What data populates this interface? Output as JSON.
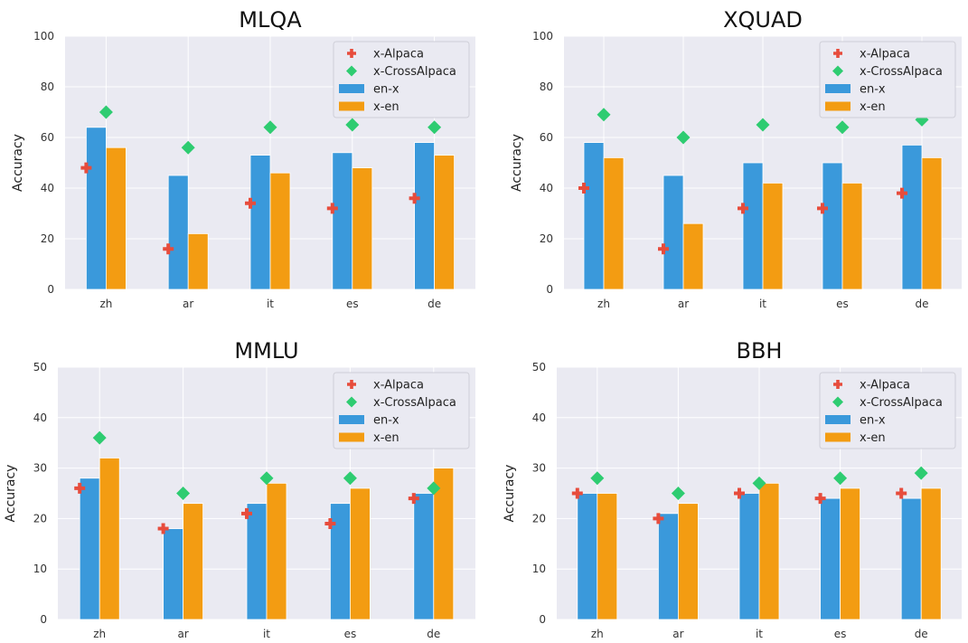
{
  "colors": {
    "en_x": "#3a99db",
    "x_en": "#f39c12",
    "x_alpaca": "#e74c3c",
    "x_crossalpaca": "#2ecc71",
    "plot_bg": "#eaeaf2",
    "grid": "#ffffff"
  },
  "chart_data": [
    {
      "type": "bar",
      "title": "MLQA",
      "ylabel": "Accuracy",
      "xlabel": "",
      "ylim": [
        0,
        100
      ],
      "yticks": [
        "0",
        "20",
        "40",
        "60",
        "80",
        "100"
      ],
      "categories": [
        "zh",
        "ar",
        "it",
        "es",
        "de"
      ],
      "grid": true,
      "legend_position": "top-right",
      "series": [
        {
          "name": "en-x",
          "kind": "bar",
          "values": [
            64,
            45,
            53,
            54,
            58
          ]
        },
        {
          "name": "x-en",
          "kind": "bar",
          "values": [
            56,
            22,
            46,
            48,
            53
          ]
        },
        {
          "name": "x-Alpaca",
          "kind": "scatter",
          "marker": "plus",
          "values": [
            48,
            16,
            34,
            32,
            36
          ]
        },
        {
          "name": "x-CrossAlpaca",
          "kind": "scatter",
          "marker": "diamond",
          "values": [
            70,
            56,
            64,
            65,
            64
          ]
        }
      ]
    },
    {
      "type": "bar",
      "title": "XQUAD",
      "ylabel": "Accuracy",
      "xlabel": "",
      "ylim": [
        0,
        100
      ],
      "yticks": [
        "0",
        "20",
        "40",
        "60",
        "80",
        "100"
      ],
      "categories": [
        "zh",
        "ar",
        "it",
        "es",
        "de"
      ],
      "grid": true,
      "legend_position": "top-right",
      "series": [
        {
          "name": "en-x",
          "kind": "bar",
          "values": [
            58,
            45,
            50,
            50,
            57
          ]
        },
        {
          "name": "x-en",
          "kind": "bar",
          "values": [
            52,
            26,
            42,
            42,
            52
          ]
        },
        {
          "name": "x-Alpaca",
          "kind": "scatter",
          "marker": "plus",
          "values": [
            40,
            16,
            32,
            32,
            38
          ]
        },
        {
          "name": "x-CrossAlpaca",
          "kind": "scatter",
          "marker": "diamond",
          "values": [
            69,
            60,
            65,
            64,
            67
          ]
        }
      ]
    },
    {
      "type": "bar",
      "title": "MMLU",
      "ylabel": "Accuracy",
      "xlabel": "",
      "ylim": [
        0,
        50
      ],
      "yticks": [
        "0",
        "10",
        "20",
        "30",
        "40",
        "50"
      ],
      "categories": [
        "zh",
        "ar",
        "it",
        "es",
        "de"
      ],
      "grid": true,
      "legend_position": "top-right",
      "series": [
        {
          "name": "en-x",
          "kind": "bar",
          "values": [
            28,
            18,
            23,
            23,
            25
          ]
        },
        {
          "name": "x-en",
          "kind": "bar",
          "values": [
            32,
            23,
            27,
            26,
            30
          ]
        },
        {
          "name": "x-Alpaca",
          "kind": "scatter",
          "marker": "plus",
          "values": [
            26,
            18,
            21,
            19,
            24
          ]
        },
        {
          "name": "x-CrossAlpaca",
          "kind": "scatter",
          "marker": "diamond",
          "values": [
            36,
            25,
            28,
            28,
            26
          ]
        }
      ]
    },
    {
      "type": "bar",
      "title": "BBH",
      "ylabel": "Accuracy",
      "xlabel": "",
      "ylim": [
        0,
        50
      ],
      "yticks": [
        "0",
        "10",
        "20",
        "30",
        "40",
        "50"
      ],
      "categories": [
        "zh",
        "ar",
        "it",
        "es",
        "de"
      ],
      "grid": true,
      "legend_position": "top-right",
      "series": [
        {
          "name": "en-x",
          "kind": "bar",
          "values": [
            25,
            21,
            25,
            24,
            24
          ]
        },
        {
          "name": "x-en",
          "kind": "bar",
          "values": [
            25,
            23,
            27,
            26,
            26
          ]
        },
        {
          "name": "x-Alpaca",
          "kind": "scatter",
          "marker": "plus",
          "values": [
            25,
            20,
            25,
            24,
            25
          ]
        },
        {
          "name": "x-CrossAlpaca",
          "kind": "scatter",
          "marker": "diamond",
          "values": [
            28,
            25,
            27,
            28,
            29
          ]
        }
      ]
    }
  ]
}
